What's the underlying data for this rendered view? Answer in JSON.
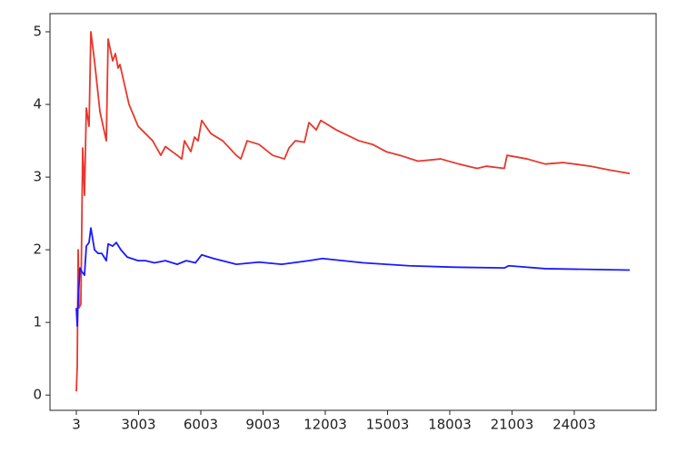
{
  "chart_data": {
    "type": "line",
    "xlim": [
      -1267,
      27948
    ],
    "xticks": [
      3,
      3003,
      6003,
      9003,
      12003,
      15003,
      18003,
      21003,
      24003
    ],
    "ylim": [
      -0.21,
      5.25
    ],
    "yticks": [
      0,
      1,
      2,
      3,
      4,
      5
    ],
    "grid": false,
    "series": [
      {
        "color": "#e8372c",
        "x": [
          3,
          47,
          91,
          135,
          222,
          310,
          397,
          485,
          616,
          704,
          879,
          1142,
          1448,
          1536,
          1755,
          1886,
          2018,
          2105,
          2543,
          2981,
          3332,
          3682,
          4076,
          4295,
          4865,
          5084,
          5215,
          5522,
          5697,
          5872,
          6047,
          6485,
          7055,
          7712,
          7931,
          8237,
          8807,
          9464,
          10033,
          10252,
          10559,
          10997,
          11216,
          11566,
          11785,
          12530,
          13625,
          14282,
          14939,
          15596,
          16472,
          17567,
          18443,
          19319,
          19757,
          20633,
          20764,
          21728,
          22604,
          23480,
          24794,
          25670,
          26677
        ],
        "values": [
          0.05,
          0.4,
          2.0,
          1.2,
          1.25,
          3.4,
          2.75,
          3.95,
          3.7,
          5.0,
          4.6,
          3.9,
          3.5,
          4.9,
          4.6,
          4.7,
          4.5,
          4.55,
          4.0,
          3.7,
          3.6,
          3.5,
          3.3,
          3.42,
          3.3,
          3.25,
          3.5,
          3.35,
          3.55,
          3.5,
          3.78,
          3.6,
          3.5,
          3.3,
          3.25,
          3.5,
          3.45,
          3.3,
          3.25,
          3.4,
          3.5,
          3.48,
          3.75,
          3.65,
          3.78,
          3.65,
          3.5,
          3.45,
          3.35,
          3.3,
          3.22,
          3.25,
          3.18,
          3.12,
          3.15,
          3.12,
          3.3,
          3.25,
          3.18,
          3.2,
          3.15,
          3.1,
          3.05
        ]
      },
      {
        "color": "#1a1aff",
        "x": [
          3,
          47,
          91,
          178,
          266,
          397,
          485,
          616,
          704,
          879,
          1054,
          1229,
          1448,
          1536,
          1755,
          1930,
          2149,
          2456,
          2981,
          3332,
          3770,
          4295,
          4865,
          5303,
          5741,
          6047,
          6617,
          7712,
          8807,
          9902,
          11216,
          11873,
          13844,
          16034,
          18224,
          20633,
          20852,
          22604,
          26677
        ],
        "values": [
          1.2,
          0.95,
          1.3,
          1.75,
          1.7,
          1.65,
          2.05,
          2.1,
          2.3,
          2.0,
          1.95,
          1.95,
          1.85,
          2.08,
          2.05,
          2.1,
          2.0,
          1.9,
          1.85,
          1.85,
          1.82,
          1.85,
          1.8,
          1.85,
          1.82,
          1.93,
          1.88,
          1.8,
          1.83,
          1.8,
          1.85,
          1.88,
          1.82,
          1.78,
          1.76,
          1.75,
          1.78,
          1.74,
          1.72
        ]
      }
    ]
  }
}
